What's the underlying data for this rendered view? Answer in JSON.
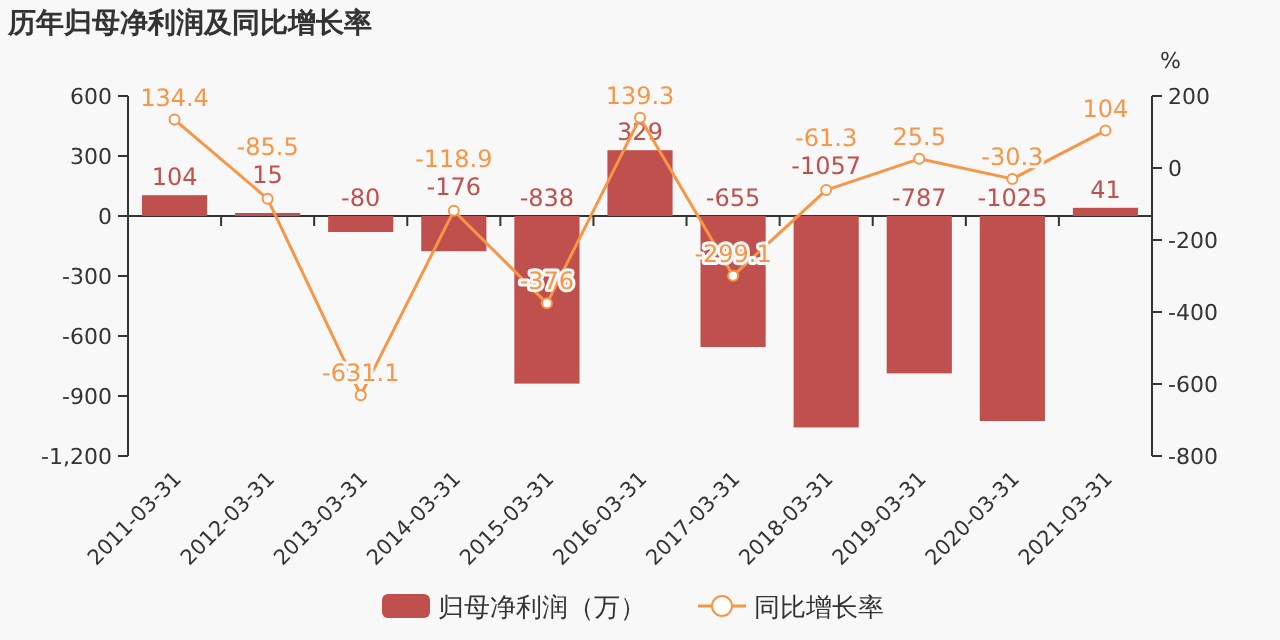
{
  "chart_data": {
    "type": "bar",
    "title": "历年归母净利润及同比增长率",
    "categories": [
      "2011-03-31",
      "2012-03-31",
      "2013-03-31",
      "2014-03-31",
      "2015-03-31",
      "2016-03-31",
      "2017-03-31",
      "2018-03-31",
      "2019-03-31",
      "2020-03-31",
      "2021-03-31"
    ],
    "series": [
      {
        "name": "归母净利润（万）",
        "color": "#c0504d",
        "values": [
          104,
          15,
          -80,
          -176,
          -838,
          329,
          -655,
          -1057,
          -787,
          -1025,
          41
        ]
      },
      {
        "name": "同比增长率",
        "type": "line",
        "axis": "y2",
        "color": "#f79646",
        "marker": "circle",
        "values": [
          134.4,
          -85.5,
          -631.1,
          -118.9,
          -376,
          139.3,
          -299.1,
          -61.3,
          25.5,
          -30.3,
          104
        ]
      }
    ],
    "data_labels": true,
    "ylim": [
      -1200,
      600
    ],
    "yticks": [
      {
        "value": -1200,
        "label": "-1,200"
      },
      -900,
      -600,
      -300,
      0,
      300,
      600
    ],
    "y2lim": [
      -800,
      200
    ],
    "y2ticks": [
      -800,
      -600,
      -400,
      -200,
      0,
      200
    ],
    "y2label": "%",
    "legend": "bottom"
  }
}
